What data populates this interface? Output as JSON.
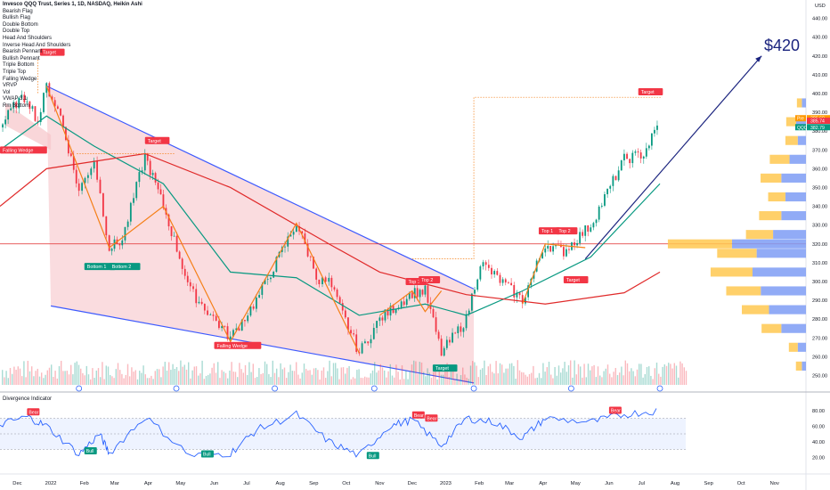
{
  "header": {
    "title": "Invesco QQQ Trust, Series 1, 1D, NASDAQ, Heikin Ashi",
    "currency": "USD"
  },
  "legend": {
    "items": [
      "Bearish Flag",
      "Bullish Flag",
      "Double Bottom",
      "Double Top",
      "Head And Shoulders",
      "Inverse Head And Shoulders",
      "Bearish Pennant",
      "Bullish Pennant",
      "Triple Bottom",
      "Triple Top",
      "Falling Wedge",
      "VRVP",
      "Vol",
      "VWAP 3.1",
      "Rm Bottom"
    ]
  },
  "price_axis": {
    "ticks": [
      250,
      260,
      270,
      280,
      290,
      300,
      310,
      320,
      330,
      340,
      350,
      360,
      370,
      380,
      390,
      400,
      410,
      420,
      430,
      440
    ],
    "badges": [
      {
        "label": "Pre",
        "value": "386.60",
        "color": "#ff9800"
      },
      {
        "label": "",
        "value": "385.74",
        "color": "#f23645"
      },
      {
        "label": "QQQ",
        "value": "382.79",
        "color": "#089981"
      }
    ]
  },
  "time_axis": {
    "ticks": [
      "Dec",
      "2022",
      "Feb",
      "Mar",
      "Apr",
      "May",
      "Jun",
      "Jul",
      "Aug",
      "Sep",
      "Oct",
      "Nov",
      "Dec",
      "2023",
      "Feb",
      "Mar",
      "Apr",
      "May",
      "Jun",
      "Jul",
      "Aug",
      "Sep",
      "Oct",
      "Nov"
    ]
  },
  "annotations": {
    "target_price": "$420",
    "labels": [
      {
        "text": "Target",
        "type": "bear"
      },
      {
        "text": "Falling Wedge",
        "type": "bear"
      },
      {
        "text": "Target",
        "type": "bear"
      },
      {
        "text": "Bottom 1",
        "type": "bull"
      },
      {
        "text": "Bottom 2",
        "type": "bull"
      },
      {
        "text": "Falling Wedge",
        "type": "bear"
      },
      {
        "text": "Top 1",
        "type": "bear"
      },
      {
        "text": "Top 2",
        "type": "bear"
      },
      {
        "text": "Target",
        "type": "bull"
      },
      {
        "text": "Target",
        "type": "bear"
      },
      {
        "text": "Top 1",
        "type": "bear"
      },
      {
        "text": "Top 2",
        "type": "bear"
      },
      {
        "text": "Target",
        "type": "bear"
      }
    ]
  },
  "indicator": {
    "title": "Divergence Indicator",
    "ticks": [
      20,
      40,
      60,
      80
    ],
    "labels": [
      {
        "text": "Bear",
        "type": "bear"
      },
      {
        "text": "Bull",
        "type": "bull"
      },
      {
        "text": "Bull",
        "type": "bull"
      },
      {
        "text": "Bull",
        "type": "bull"
      },
      {
        "text": "Bear",
        "type": "bear"
      },
      {
        "text": "Bear",
        "type": "bear"
      },
      {
        "text": "Bear",
        "type": "bear"
      }
    ]
  },
  "colors": {
    "up": "#089981",
    "down": "#f23645",
    "wedge_fill": "#f7c5c9",
    "wedge_line": "#3d5afe",
    "ma_green": "#089981",
    "ma_red": "#e02a2a",
    "target_arrow": "#1a237e",
    "vp_up": "#ffc850",
    "vp_down": "#7e9cf5",
    "rsi_line": "#2962ff"
  },
  "chart_data": {
    "type": "candlestick",
    "title": "Invesco QQQ Trust, Series 1, 1D, NASDAQ, Heikin Ashi",
    "ylabel": "USD",
    "ylim": [
      245,
      445
    ],
    "x_range": [
      "2021-11-15",
      "2023-11-30"
    ],
    "price_path": [
      [
        "2021-11-15",
        382
      ],
      [
        "2021-11-30",
        395
      ],
      [
        "2021-12-10",
        398
      ],
      [
        "2021-12-20",
        385
      ],
      [
        "2021-12-28",
        404
      ],
      [
        "2022-01-10",
        388
      ],
      [
        "2022-01-27",
        348
      ],
      [
        "2022-02-10",
        365
      ],
      [
        "2022-02-24",
        318
      ],
      [
        "2022-03-08",
        322
      ],
      [
        "2022-03-29",
        367
      ],
      [
        "2022-04-15",
        340
      ],
      [
        "2022-05-10",
        295
      ],
      [
        "2022-06-16",
        270
      ],
      [
        "2022-07-10",
        290
      ],
      [
        "2022-08-16",
        331
      ],
      [
        "2022-09-06",
        300
      ],
      [
        "2022-09-15",
        300
      ],
      [
        "2022-10-13",
        262
      ],
      [
        "2022-11-01",
        280
      ],
      [
        "2022-12-01",
        294
      ],
      [
        "2022-12-13",
        295
      ],
      [
        "2022-12-28",
        262
      ],
      [
        "2023-01-20",
        280
      ],
      [
        "2023-02-02",
        310
      ],
      [
        "2023-03-13",
        290
      ],
      [
        "2023-04-03",
        320
      ],
      [
        "2023-04-20",
        316
      ],
      [
        "2023-05-15",
        330
      ],
      [
        "2023-06-15",
        365
      ],
      [
        "2023-07-03",
        368
      ],
      [
        "2023-07-18",
        385
      ]
    ],
    "ma_green": [
      [
        "2021-11-15",
        370
      ],
      [
        "2021-12-28",
        388
      ],
      [
        "2022-02-10",
        372
      ],
      [
        "2022-04-15",
        352
      ],
      [
        "2022-06-16",
        305
      ],
      [
        "2022-08-16",
        302
      ],
      [
        "2022-10-13",
        282
      ],
      [
        "2022-12-13",
        288
      ],
      [
        "2023-01-20",
        282
      ],
      [
        "2023-03-13",
        295
      ],
      [
        "2023-05-15",
        313
      ],
      [
        "2023-07-18",
        352
      ]
    ],
    "ma_red": [
      [
        "2021-11-15",
        340
      ],
      [
        "2021-12-28",
        360
      ],
      [
        "2022-03-29",
        368
      ],
      [
        "2022-06-16",
        350
      ],
      [
        "2022-09-15",
        320
      ],
      [
        "2022-11-01",
        305
      ],
      [
        "2023-01-20",
        293
      ],
      [
        "2023-04-03",
        288
      ],
      [
        "2023-06-15",
        294
      ],
      [
        "2023-07-18",
        305
      ]
    ],
    "horizontal_level": 320,
    "target_price": 420,
    "volume_profile": [
      {
        "price": 255,
        "up": 12,
        "down": 5
      },
      {
        "price": 265,
        "up": 18,
        "down": 10
      },
      {
        "price": 275,
        "up": 40,
        "down": 30
      },
      {
        "price": 285,
        "up": 55,
        "down": 45
      },
      {
        "price": 295,
        "up": 70,
        "down": 55
      },
      {
        "price": 305,
        "up": 85,
        "down": 65
      },
      {
        "price": 315,
        "up": 80,
        "down": 60
      },
      {
        "price": 320,
        "up": 130,
        "down": 90
      },
      {
        "price": 325,
        "up": 55,
        "down": 40
      },
      {
        "price": 335,
        "up": 45,
        "down": 30
      },
      {
        "price": 345,
        "up": 35,
        "down": 25
      },
      {
        "price": 355,
        "up": 42,
        "down": 30
      },
      {
        "price": 365,
        "up": 40,
        "down": 20
      },
      {
        "price": 375,
        "up": 25,
        "down": 10
      },
      {
        "price": 385,
        "up": 20,
        "down": 12
      },
      {
        "price": 395,
        "up": 10,
        "down": 5
      }
    ],
    "divergence_indicator": {
      "ylim": [
        10,
        90
      ],
      "path": [
        [
          "2021-11-15",
          62
        ],
        [
          "2021-12-10",
          72
        ],
        [
          "2021-12-28",
          60
        ],
        [
          "2022-01-27",
          24
        ],
        [
          "2022-02-15",
          50
        ],
        [
          "2022-02-24",
          25
        ],
        [
          "2022-03-29",
          72
        ],
        [
          "2022-05-10",
          22
        ],
        [
          "2022-06-16",
          25
        ],
        [
          "2022-07-10",
          55
        ],
        [
          "2022-08-16",
          75
        ],
        [
          "2022-09-15",
          40
        ],
        [
          "2022-10-13",
          22
        ],
        [
          "2022-11-10",
          60
        ],
        [
          "2022-12-01",
          68
        ],
        [
          "2022-12-28",
          35
        ],
        [
          "2023-01-20",
          70
        ],
        [
          "2023-02-15",
          65
        ],
        [
          "2023-03-13",
          45
        ],
        [
          "2023-04-03",
          70
        ],
        [
          "2023-05-15",
          65
        ],
        [
          "2023-06-15",
          75
        ],
        [
          "2023-07-18",
          80
        ]
      ]
    }
  }
}
